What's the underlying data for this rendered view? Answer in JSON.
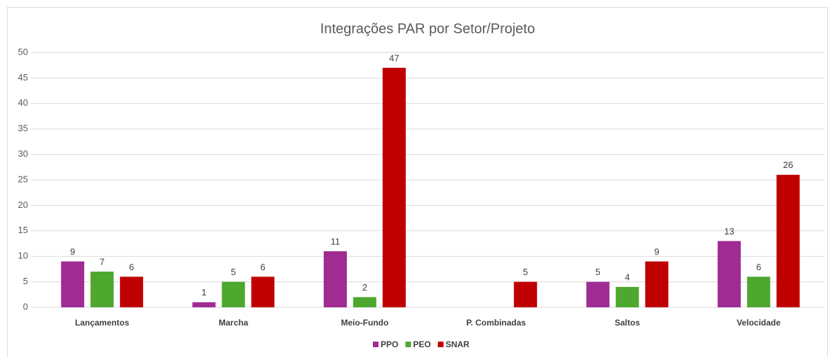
{
  "chart_data": {
    "type": "bar",
    "title": "Integrações PAR por Setor/Projeto",
    "categories": [
      "Lançamentos",
      "Marcha",
      "Meio-Fundo",
      "P. Combinadas",
      "Saltos",
      "Velocidade"
    ],
    "series": [
      {
        "name": "PPO",
        "color": "#a02b93",
        "values": [
          9,
          1,
          11,
          null,
          5,
          13
        ]
      },
      {
        "name": "PEO",
        "color": "#4ea72e",
        "values": [
          7,
          5,
          2,
          null,
          4,
          6
        ]
      },
      {
        "name": "SNAR",
        "color": "#c00000",
        "values": [
          6,
          6,
          47,
          5,
          9,
          26
        ]
      }
    ],
    "ylim": [
      0,
      50
    ],
    "yticks": [
      0,
      5,
      10,
      15,
      20,
      25,
      30,
      35,
      40,
      45,
      50
    ],
    "grid": true,
    "legend": "bottom"
  }
}
